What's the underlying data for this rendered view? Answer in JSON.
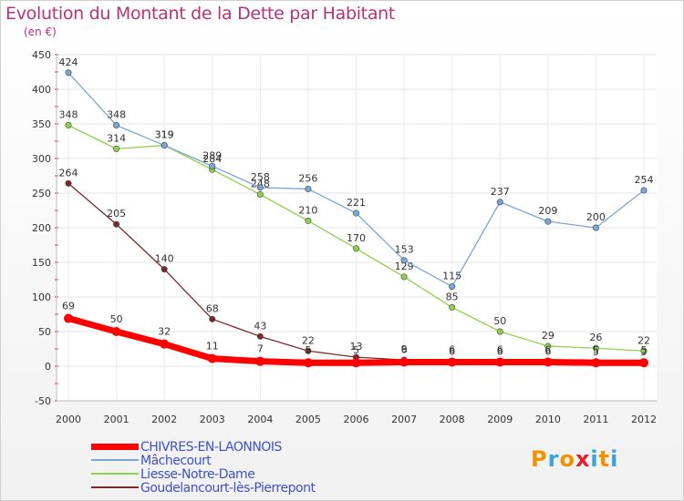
{
  "header": {
    "title": "Evolution du Montant de la Dette par Habitant",
    "unit": "(en €)"
  },
  "logo": {
    "text": "Proxiti",
    "colors": [
      "#f39200",
      "#3aa2dc",
      "#f39200",
      "#e5202e",
      "#3aa2dc",
      "#f39200",
      "#3aa2dc"
    ]
  },
  "chart_data": {
    "type": "line",
    "title": "Evolution du Montant de la Dette par Habitant",
    "ylabel": "(en €)",
    "xlabel": "",
    "x": [
      "2000",
      "2001",
      "2002",
      "2003",
      "2004",
      "2005",
      "2006",
      "2007",
      "2008",
      "2009",
      "2010",
      "2011",
      "2012"
    ],
    "ylim": [
      -50,
      450
    ],
    "yticks": [
      -50,
      0,
      50,
      100,
      150,
      200,
      250,
      300,
      350,
      400,
      450
    ],
    "grid": true,
    "legend": "bottom-left",
    "series": [
      {
        "name": "Goudelancourt-lès-Pierrepont",
        "color": "#7b2a2a",
        "values": [
          264,
          205,
          140,
          68,
          43,
          22,
          13,
          9,
          6,
          6,
          6,
          5,
          5
        ],
        "labels": [
          "264",
          "205",
          "140",
          "68",
          "43",
          "22",
          "13",
          "9",
          "6",
          "6",
          "6",
          "5",
          "5"
        ]
      },
      {
        "name": "Liesse-Notre-Dame",
        "color": "#8fd14f",
        "values": [
          348,
          314,
          319,
          284,
          248,
          210,
          170,
          129,
          85,
          50,
          29,
          26,
          22
        ],
        "labels": [
          "348",
          "314",
          "319",
          "284",
          "248",
          "210",
          "170",
          "129",
          "85",
          "50",
          "29",
          "26",
          "22"
        ]
      },
      {
        "name": "Mâchecourt",
        "color": "#7aa7d6",
        "values": [
          424,
          348,
          319,
          289,
          258,
          256,
          221,
          153,
          115,
          237,
          209,
          200,
          254
        ],
        "labels": [
          "424",
          "348",
          "319",
          "289",
          "258",
          "256",
          "221",
          "153",
          "115",
          "237",
          "209",
          "200",
          "254"
        ]
      },
      {
        "name": "CHIVRES-EN-LAONNOIS",
        "color": "#ff0000",
        "values": [
          69,
          50,
          32,
          11,
          7,
          5,
          5,
          6,
          6,
          6,
          6,
          5,
          5
        ],
        "labels": [
          "69",
          "50",
          "32",
          "11",
          "7",
          "5",
          "5",
          "6",
          "6",
          "6",
          "6",
          "5",
          "5"
        ]
      }
    ]
  },
  "legend": [
    {
      "name": "CHIVRES-EN-LAONNOIS",
      "color": "#ff0000"
    },
    {
      "name": "Mâchecourt",
      "color": "#7aa7d6"
    },
    {
      "name": "Liesse-Notre-Dame",
      "color": "#8fd14f"
    },
    {
      "name": "Goudelancourt-lès-Pierrepont",
      "color": "#7b2a2a"
    }
  ]
}
